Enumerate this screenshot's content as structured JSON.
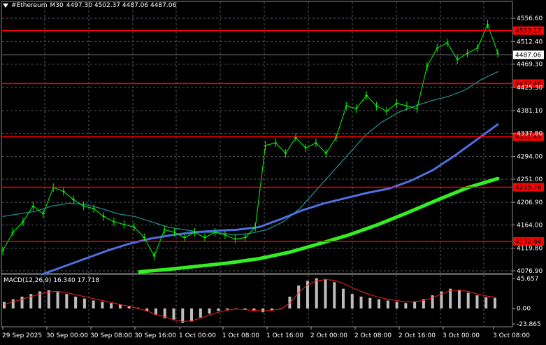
{
  "header": {
    "symbol": "#Ethereum",
    "timeframe": "M30",
    "ohlc": "4497.30 4502.37 4487.06 4487.06"
  },
  "price_axis": {
    "ticks": [
      "4556.60",
      "4512.40",
      "4469.30",
      "4425.30",
      "4381.10",
      "4337.80",
      "4294.00",
      "4251.00",
      "4206.90",
      "4164.00",
      "4119.80",
      "4076.90"
    ],
    "current_price": "4487.06"
  },
  "levels": [
    {
      "price": 4533.17,
      "label": "4533.17"
    },
    {
      "price": 4432.46,
      "label": "4432.46"
    },
    {
      "price": 4331.45,
      "label": "4331.45"
    },
    {
      "price": 4235.76,
      "label": "4235.76"
    },
    {
      "price": 4132.84,
      "label": "4132.84"
    }
  ],
  "time_axis": [
    "29 Sep 2025",
    "30 Sep 00:00",
    "30 Sep 08:00",
    "30 Sep 16:00",
    "1 Oct 00:00",
    "1 Oct 08:00",
    "1 Oct 16:00",
    "2 Oct 00:00",
    "2 Oct 08:00",
    "2 Oct 16:00",
    "3 Oct 00:00",
    "3 Oct 08:00"
  ],
  "macd": {
    "label": "MACD(12,26,9) 16.340 17.718",
    "ticks": [
      "45.657",
      "0.00",
      "-23.865"
    ]
  },
  "colors": {
    "background": "#000000",
    "grid": "#5a5a5a",
    "candle_up": "#00ff00",
    "candle_down": "#00ff00",
    "level_line": "#ff0000",
    "ma_fast": "#1f8a8a",
    "ma_mid": "#4f6fe0",
    "ma_slow": "#33ee22",
    "macd_hist": "#bdbdbd",
    "macd_signal": "#ff2020"
  },
  "chart_data": {
    "type": "line",
    "series": [
      {
        "values": [
          4115,
          4150,
          4170,
          4200,
          4185,
          4235,
          4228,
          4212,
          4200,
          4195,
          4180,
          4170,
          4165,
          4160,
          4140,
          4105,
          4155,
          4150,
          4140,
          4150,
          4140,
          4150,
          4145,
          4137,
          4140,
          4160,
          4315,
          4320,
          4300,
          4330,
          4310,
          4320,
          4300,
          4330,
          4390,
          4385,
          4410,
          4390,
          4380,
          4395,
          4390,
          4385,
          4465,
          4500,
          4510,
          4478,
          4490,
          4500,
          4545,
          4490
        ]
      },
      {
        "values": [
          4180,
          4185,
          4190,
          4200,
          4205,
          4203,
          4195,
          4185,
          4180,
          4170,
          4160,
          4155,
          4150,
          4150,
          4145,
          4148,
          4155,
          4170,
          4195,
          4230,
          4265,
          4300,
          4335,
          4360,
          4378,
          4390,
          4400,
          4408,
          4420,
          4440,
          4455
        ]
      },
      {
        "values": [
          4070,
          4085,
          4100,
          4115,
          4128,
          4138,
          4145,
          4150,
          4153,
          4155,
          4160,
          4175,
          4192,
          4205,
          4215,
          4225,
          4233,
          4248,
          4268,
          4295,
          4325,
          4355
        ]
      },
      {
        "values": [
          4075,
          4080,
          4086,
          4092,
          4100,
          4112,
          4128,
          4145,
          4165,
          4188,
          4212,
          4235,
          4252
        ]
      }
    ],
    "ylim": [
      4076.9,
      4556.6
    ]
  }
}
